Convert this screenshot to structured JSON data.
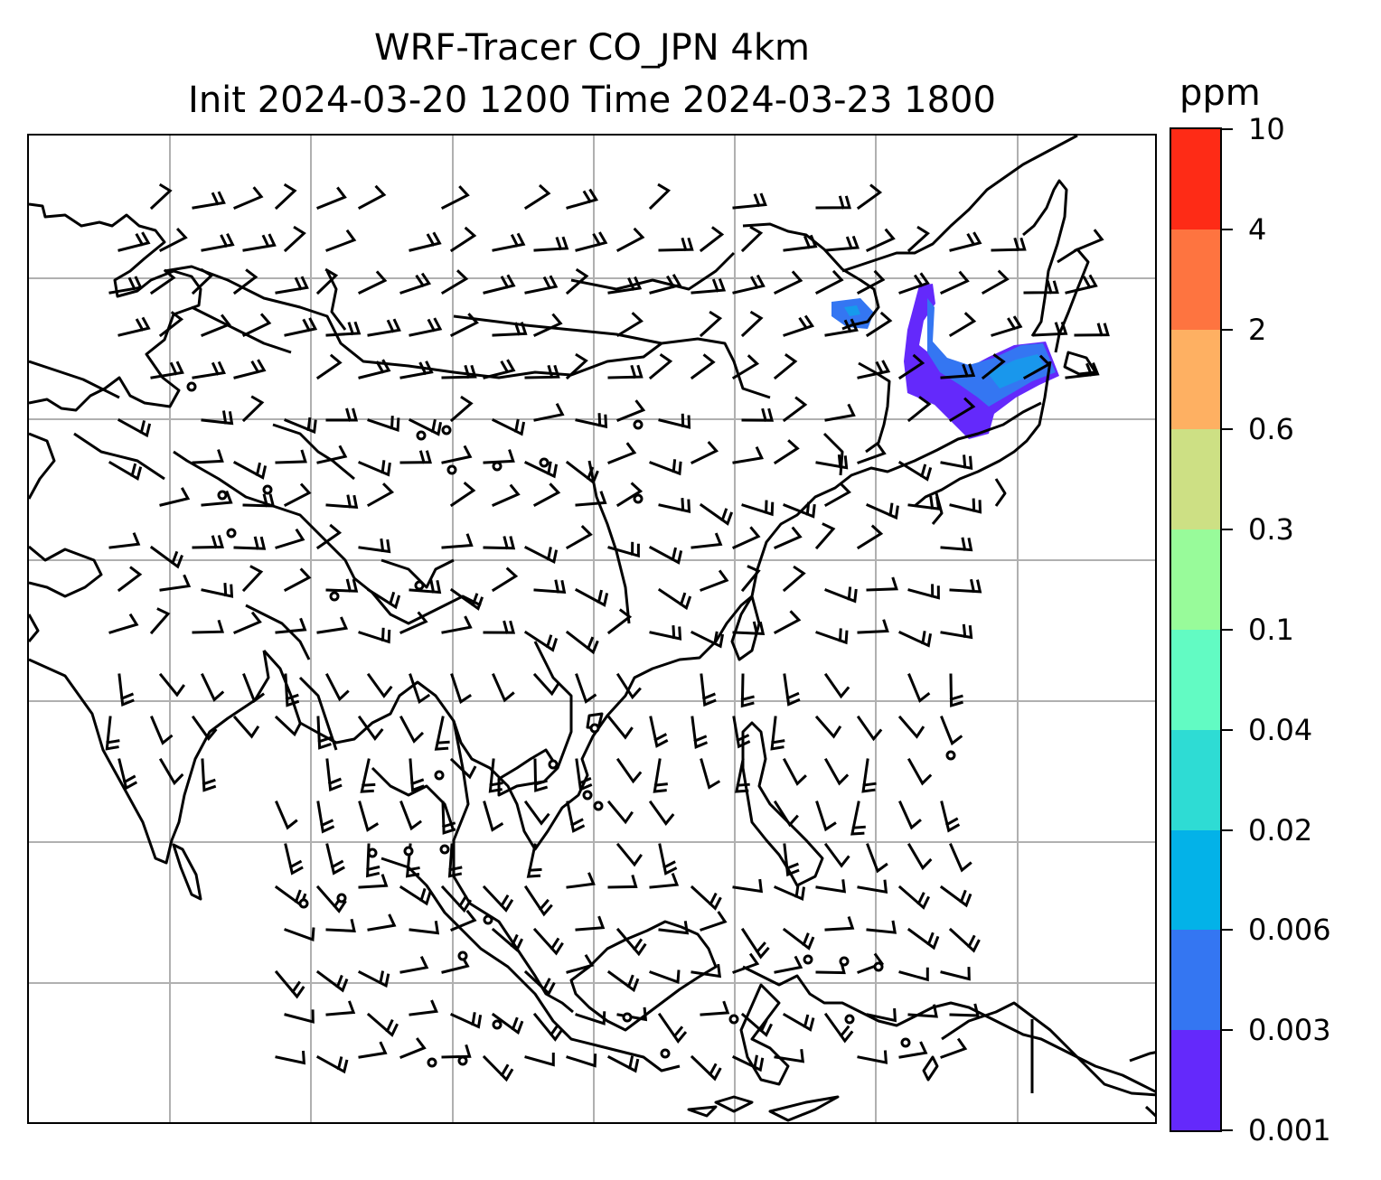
{
  "title": {
    "line1": "WRF-Tracer CO_JPN 4km",
    "line2": "Init 2024-03-20 1200 Time 2024-03-23 1800"
  },
  "colorbar": {
    "unit": "ppm",
    "ticks": [
      "0.001",
      "0.003",
      "0.006",
      "0.02",
      "0.04",
      "0.1",
      "0.3",
      "0.6",
      "2",
      "4",
      "10"
    ],
    "colors": [
      "#6429fb",
      "#3476f2",
      "#03b2e8",
      "#2edcd4",
      "#62fbc3",
      "#98fb9a",
      "#cde084",
      "#feb062",
      "#fe7440",
      "#fe2b16"
    ]
  },
  "map": {
    "gridlines": true,
    "wind_barbs": true,
    "calm_markers": true,
    "tracer_plume_colors": [
      "#6429fb",
      "#3476f2",
      "#03b2e8"
    ]
  }
}
